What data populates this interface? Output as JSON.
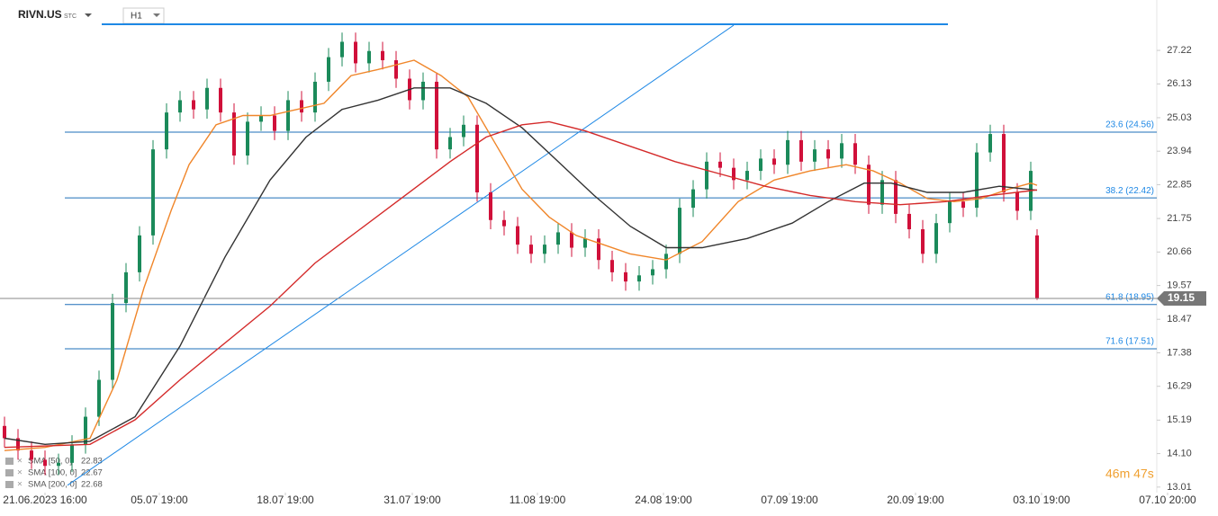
{
  "chart_data": {
    "type": "candlestick",
    "symbol": "RIVN.US",
    "market": "STC",
    "interval": "H1",
    "timer": "46m 47s",
    "xlim": [
      0,
      1285
    ],
    "ylim": [
      12.83,
      28.86
    ],
    "yticks": [
      13.01,
      {
        "value": 14.1,
        "label": "14.10"
      },
      15.19,
      16.29,
      17.38,
      18.47,
      19.57,
      20.66,
      21.75,
      22.85,
      23.94,
      25.03,
      26.13,
      27.22
    ],
    "xticks": [
      {
        "value": 50,
        "label": "21.06.2023 16:00"
      },
      {
        "value": 177,
        "label": "05.07 19:00"
      },
      {
        "value": 317,
        "label": "18.07 19:00"
      },
      {
        "value": 458,
        "label": "31.07 19:00"
      },
      {
        "value": 597,
        "label": "11.08 19:00"
      },
      {
        "value": 737,
        "label": "24.08 19:00"
      },
      {
        "value": 877,
        "label": "07.09 19:00"
      },
      {
        "value": 1017,
        "label": "20.09 19:00"
      },
      {
        "value": 1157,
        "label": "03.10 19:00"
      },
      {
        "value": 1297,
        "label": "07.10 20:00"
      }
    ],
    "up_color": "#1b8a5a",
    "down_color": "#d0103a",
    "candles": {
      "x": [
        5,
        20,
        35,
        50,
        65,
        80,
        95,
        110,
        125,
        140,
        155,
        170,
        185,
        200,
        215,
        230,
        245,
        260,
        275,
        290,
        305,
        320,
        335,
        350,
        365,
        380,
        395,
        410,
        425,
        440,
        455,
        470,
        485,
        500,
        515,
        530,
        545,
        560,
        575,
        590,
        605,
        620,
        635,
        650,
        665,
        680,
        695,
        710,
        725,
        740,
        755,
        770,
        785,
        800,
        815,
        830,
        845,
        860,
        875,
        890,
        905,
        920,
        935,
        950,
        965,
        980,
        995,
        1010,
        1025,
        1040,
        1055,
        1070,
        1085,
        1100,
        1115,
        1130,
        1145,
        1152
      ],
      "open": [
        15.0,
        14.6,
        14.2,
        13.9,
        13.7,
        13.8,
        14.4,
        15.3,
        16.5,
        19.0,
        20.0,
        21.2,
        24.0,
        25.2,
        25.6,
        25.3,
        26.0,
        25.2,
        23.8,
        24.9,
        25.1,
        24.6,
        25.6,
        25.2,
        26.2,
        27.0,
        27.5,
        26.8,
        27.2,
        26.9,
        26.3,
        25.6,
        26.2,
        24.0,
        24.4,
        24.8,
        22.6,
        21.7,
        21.5,
        20.9,
        20.6,
        20.9,
        21.3,
        20.8,
        21.1,
        20.4,
        20.0,
        19.7,
        19.9,
        20.1,
        20.6,
        22.1,
        22.7,
        23.6,
        23.4,
        23.0,
        23.3,
        23.7,
        23.5,
        24.3,
        23.6,
        24.0,
        23.7,
        24.2,
        23.5,
        22.2,
        23.0,
        21.9,
        21.4,
        20.6,
        21.6,
        22.3,
        22.1,
        23.9,
        24.5,
        22.6,
        22.0,
        21.2
      ],
      "high": [
        15.3,
        14.9,
        14.5,
        14.2,
        14.1,
        14.7,
        15.6,
        16.8,
        19.3,
        20.3,
        21.5,
        24.3,
        25.5,
        25.9,
        25.9,
        26.3,
        26.3,
        25.5,
        25.2,
        25.4,
        25.4,
        25.9,
        25.9,
        26.5,
        27.3,
        27.8,
        27.8,
        27.5,
        27.5,
        27.2,
        26.6,
        26.5,
        26.5,
        24.7,
        25.1,
        25.1,
        22.9,
        22.0,
        21.8,
        21.2,
        21.2,
        21.6,
        21.6,
        21.4,
        21.4,
        20.7,
        20.3,
        20.2,
        20.4,
        20.9,
        22.4,
        23.0,
        23.9,
        23.9,
        23.7,
        23.6,
        24.0,
        24.0,
        24.6,
        24.6,
        24.3,
        24.3,
        24.5,
        24.5,
        23.8,
        23.3,
        23.3,
        22.2,
        21.7,
        21.9,
        22.6,
        22.6,
        24.2,
        24.8,
        24.8,
        22.9,
        23.6,
        21.4
      ],
      "low": [
        14.3,
        13.9,
        13.6,
        13.4,
        13.4,
        13.5,
        14.1,
        15.0,
        16.2,
        18.7,
        19.7,
        20.9,
        23.7,
        24.9,
        25.0,
        25.0,
        24.9,
        23.5,
        23.5,
        24.6,
        24.3,
        24.3,
        24.9,
        24.9,
        25.9,
        26.7,
        26.5,
        26.5,
        26.6,
        26.0,
        25.3,
        25.3,
        23.7,
        23.7,
        24.1,
        22.3,
        21.4,
        21.2,
        20.6,
        20.3,
        20.3,
        20.6,
        20.5,
        20.5,
        20.1,
        19.7,
        19.4,
        19.4,
        19.6,
        19.8,
        20.3,
        21.8,
        22.4,
        23.1,
        22.7,
        22.7,
        23.0,
        23.2,
        23.2,
        23.3,
        23.3,
        23.4,
        23.4,
        23.2,
        21.9,
        21.9,
        21.6,
        21.1,
        20.3,
        20.3,
        21.3,
        21.8,
        21.8,
        23.6,
        22.3,
        21.7,
        21.7,
        19.1
      ],
      "close": [
        14.6,
        14.2,
        13.9,
        13.7,
        13.8,
        14.4,
        15.3,
        16.5,
        19.0,
        20.0,
        21.2,
        24.0,
        25.2,
        25.6,
        25.3,
        26.0,
        25.2,
        23.8,
        24.9,
        25.1,
        24.6,
        25.6,
        25.2,
        26.2,
        27.0,
        27.5,
        26.8,
        27.2,
        26.9,
        26.3,
        25.6,
        26.2,
        24.0,
        24.4,
        24.8,
        22.6,
        21.7,
        21.5,
        20.9,
        20.6,
        20.9,
        21.3,
        20.8,
        21.1,
        20.4,
        20.0,
        19.7,
        19.9,
        20.1,
        20.6,
        22.1,
        22.7,
        23.6,
        23.4,
        23.0,
        23.3,
        23.7,
        23.5,
        24.3,
        23.6,
        24.0,
        23.7,
        24.2,
        23.5,
        22.2,
        23.0,
        21.9,
        21.4,
        20.6,
        21.6,
        22.3,
        22.1,
        23.9,
        24.5,
        22.6,
        22.0,
        23.3,
        19.15
      ]
    },
    "series": [
      {
        "name": "SMA [50, 0]",
        "color": "#f0862a",
        "x": [
          5,
          50,
          100,
          130,
          160,
          190,
          210,
          240,
          270,
          300,
          330,
          360,
          390,
          420,
          460,
          490,
          520,
          550,
          580,
          610,
          640,
          670,
          700,
          740,
          780,
          820,
          860,
          900,
          940,
          970,
          1000,
          1030,
          1060,
          1090,
          1120,
          1145,
          1152
        ],
        "values": [
          14.2,
          14.3,
          14.6,
          16.5,
          19.5,
          22.0,
          23.5,
          24.8,
          25.1,
          25.1,
          25.3,
          25.5,
          26.4,
          26.6,
          26.9,
          26.4,
          25.7,
          24.2,
          22.7,
          21.8,
          21.2,
          20.9,
          20.6,
          20.4,
          21.0,
          22.3,
          23.0,
          23.3,
          23.5,
          23.3,
          22.9,
          22.4,
          22.3,
          22.4,
          22.7,
          22.9,
          22.83
        ]
      },
      {
        "name": "SMA [100, 0]",
        "color": "#333333",
        "x": [
          5,
          50,
          100,
          150,
          200,
          250,
          300,
          340,
          380,
          420,
          460,
          500,
          540,
          580,
          620,
          660,
          700,
          740,
          780,
          830,
          880,
          920,
          960,
          990,
          1030,
          1070,
          1110,
          1152
        ],
        "values": [
          14.6,
          14.4,
          14.5,
          15.3,
          17.6,
          20.5,
          23.0,
          24.4,
          25.3,
          25.6,
          26.0,
          26.0,
          25.5,
          24.7,
          23.6,
          22.5,
          21.5,
          20.8,
          20.8,
          21.1,
          21.6,
          22.3,
          22.9,
          22.9,
          22.6,
          22.6,
          22.8,
          22.67
        ]
      },
      {
        "name": "SMA [200, 0]",
        "color": "#d42a2a",
        "x": [
          5,
          100,
          150,
          200,
          250,
          300,
          350,
          400,
          450,
          500,
          540,
          580,
          610,
          650,
          700,
          750,
          800,
          850,
          900,
          950,
          1000,
          1050,
          1100,
          1152
        ],
        "values": [
          14.3,
          14.4,
          15.2,
          16.5,
          17.7,
          18.9,
          20.3,
          21.4,
          22.5,
          23.6,
          24.4,
          24.8,
          24.9,
          24.6,
          24.1,
          23.6,
          23.2,
          22.8,
          22.5,
          22.3,
          22.2,
          22.3,
          22.5,
          22.68
        ]
      }
    ],
    "fib_levels": [
      {
        "value": 24.56,
        "label": "23.6 (24.56)"
      },
      {
        "value": 22.42,
        "label": "38.2 (22.42)"
      },
      {
        "value": 18.95,
        "label": "61.8 (18.95)"
      },
      {
        "value": 17.51,
        "label": "71.6 (17.51)"
      }
    ],
    "trendlines": [
      {
        "color": "#1e88e5",
        "x": [
          113,
          1053
        ],
        "values": [
          28.07,
          28.07
        ]
      },
      {
        "color": "#1e88e5",
        "x": [
          75,
          815
        ],
        "values": [
          13.07,
          28.04
        ]
      }
    ],
    "last_price": 19.15
  }
}
